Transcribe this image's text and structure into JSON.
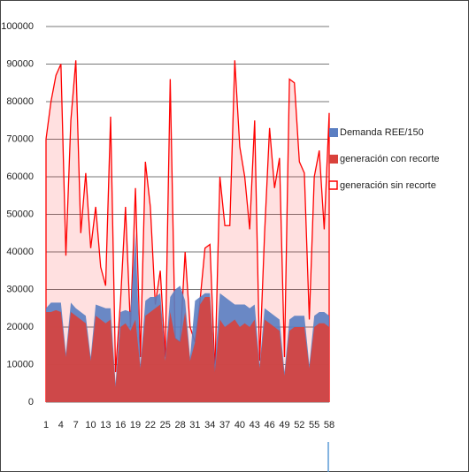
{
  "chart_data": {
    "type": "area",
    "categories": [
      1,
      null,
      null,
      4,
      null,
      null,
      7,
      null,
      null,
      10,
      null,
      null,
      13,
      null,
      null,
      16,
      null,
      null,
      19,
      null,
      null,
      22,
      null,
      null,
      25,
      null,
      null,
      28,
      null,
      null,
      31,
      null,
      null,
      34,
      null,
      null,
      37,
      null,
      null,
      40,
      null,
      null,
      43,
      null,
      null,
      46,
      null,
      null,
      49,
      null,
      null,
      52,
      null,
      null,
      55,
      null,
      null,
      58
    ],
    "series": [
      {
        "name": "Demanda REE/150",
        "color": "#5a7ec2",
        "style": "area",
        "values": [
          25000,
          26500,
          26500,
          26500,
          13000,
          26500,
          25000,
          24000,
          23000,
          12000,
          26000,
          25500,
          25000,
          25000,
          5000,
          24000,
          24500,
          24000,
          45000,
          10000,
          27000,
          28000,
          28000,
          29000,
          12000,
          28000,
          30000,
          31000,
          27000,
          12000,
          27000,
          28000,
          29000,
          29000,
          10000,
          29000,
          28000,
          27000,
          26000,
          26000,
          26000,
          25000,
          26000,
          10000,
          25000,
          24000,
          23000,
          22000,
          8000,
          22000,
          23000,
          23000,
          23000,
          10000,
          23000,
          24000,
          24000,
          23000
        ]
      },
      {
        "name": "generación con recorte",
        "color": "#d9413b",
        "style": "area",
        "values": [
          24000,
          24000,
          24500,
          24000,
          12000,
          24000,
          23000,
          22000,
          21000,
          11000,
          23000,
          22000,
          21000,
          22000,
          4000,
          20000,
          21000,
          19000,
          22000,
          9000,
          23000,
          24000,
          25000,
          26000,
          11000,
          24000,
          17000,
          16000,
          24000,
          11000,
          16000,
          26000,
          28000,
          28000,
          8000,
          22000,
          20000,
          21000,
          22000,
          20000,
          21000,
          20000,
          22000,
          9000,
          22000,
          21000,
          20000,
          19000,
          7000,
          19000,
          20000,
          20000,
          20000,
          9000,
          20000,
          21000,
          21000,
          20000
        ]
      },
      {
        "name": "generación sin recorte",
        "color": "#ff0000",
        "style": "line",
        "values": [
          70000,
          80000,
          87000,
          90000,
          39000,
          75000,
          91000,
          45000,
          61000,
          41000,
          52000,
          36000,
          31000,
          76000,
          8000,
          27000,
          52000,
          20000,
          57000,
          12000,
          64000,
          52000,
          26000,
          35000,
          12000,
          86000,
          17000,
          16000,
          40000,
          20000,
          16000,
          27000,
          41000,
          42000,
          8000,
          60000,
          47000,
          47000,
          91000,
          68000,
          60000,
          46000,
          75000,
          11000,
          45000,
          73000,
          57000,
          65000,
          12000,
          86000,
          85000,
          64000,
          61000,
          22000,
          60000,
          67000,
          46000,
          77000
        ]
      }
    ],
    "ylim": [
      0,
      100000
    ],
    "yticks": [
      0,
      10000,
      20000,
      30000,
      40000,
      50000,
      60000,
      70000,
      80000,
      90000,
      100000
    ],
    "grid": true,
    "legend": "right"
  }
}
